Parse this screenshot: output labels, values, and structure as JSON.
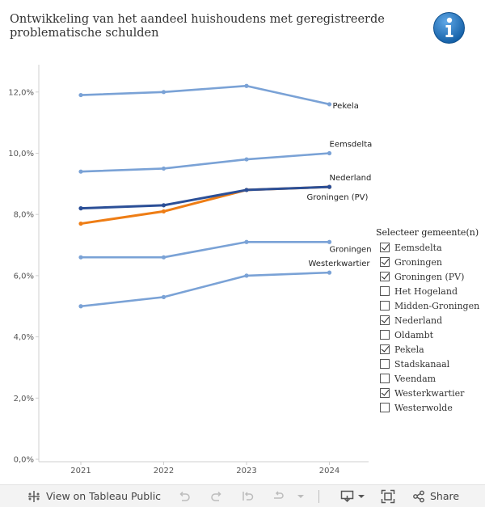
{
  "title": "Ontwikkeling van het aandeel huishoudens met geregistreerde problematische schulden",
  "colors": {
    "region": "#7aa2d6",
    "nederland": "#2b4f97",
    "provincie": "#ee7d15",
    "axis": "#cfcfcf",
    "tick": "#555555",
    "info": "#1a6fb8"
  },
  "info_icon": "info-icon",
  "chart_data": {
    "type": "line",
    "title": "Ontwikkeling van het aandeel huishoudens met geregistreerde problematische schulden",
    "xlabel": "",
    "ylabel": "",
    "x": [
      "2021",
      "2022",
      "2023",
      "2024"
    ],
    "ylim": [
      0,
      13.2
    ],
    "yticks": [
      0,
      2,
      4,
      6,
      8,
      10,
      12
    ],
    "ytick_labels": [
      "0,0%",
      "2,0%",
      "4,0%",
      "6,0%",
      "8,0%",
      "10,0%",
      "12,0%"
    ],
    "series": [
      {
        "name": "Pekela",
        "label": "Pekela",
        "values": [
          11.9,
          12.0,
          12.2,
          11.6
        ],
        "color": "#7aa2d6"
      },
      {
        "name": "Eemsdelta",
        "label": "Eemsdelta",
        "values": [
          9.4,
          9.5,
          9.8,
          10.0
        ],
        "color": "#7aa2d6"
      },
      {
        "name": "Nederland",
        "label": "Nederland",
        "values": [
          8.2,
          8.3,
          8.8,
          8.9
        ],
        "color": "#2b4f97"
      },
      {
        "name": "Groningen (PV)",
        "label": "Groningen (PV)",
        "values": [
          7.7,
          8.1,
          8.8,
          8.9
        ],
        "color": "#ee7d15"
      },
      {
        "name": "Groningen",
        "label": "Groningen",
        "values": [
          6.6,
          6.6,
          7.1,
          7.1
        ],
        "color": "#7aa2d6"
      },
      {
        "name": "Westerkwartier",
        "label": "Westerkwartier",
        "values": [
          5.0,
          5.3,
          6.0,
          6.1
        ],
        "color": "#7aa2d6"
      }
    ]
  },
  "legend": {
    "title": "Selecteer gemeente(n)",
    "items": [
      {
        "label": "Eemsdelta",
        "checked": true
      },
      {
        "label": "Groningen",
        "checked": true
      },
      {
        "label": "Groningen (PV)",
        "checked": true
      },
      {
        "label": "Het Hogeland",
        "checked": false
      },
      {
        "label": "Midden-Groningen",
        "checked": false
      },
      {
        "label": "Nederland",
        "checked": true
      },
      {
        "label": "Oldambt",
        "checked": false
      },
      {
        "label": "Pekela",
        "checked": true
      },
      {
        "label": "Stadskanaal",
        "checked": false
      },
      {
        "label": "Veendam",
        "checked": false
      },
      {
        "label": "Westerkwartier",
        "checked": true
      },
      {
        "label": "Westerwolde",
        "checked": false
      }
    ]
  },
  "toolbar": {
    "view_label": "View on Tableau Public",
    "share_label": "Share",
    "icons": [
      "tableau-logo-icon",
      "undo-icon",
      "redo-icon",
      "revert-icon",
      "refresh-icon",
      "download-icon",
      "fullscreen-icon",
      "share-icon"
    ]
  }
}
